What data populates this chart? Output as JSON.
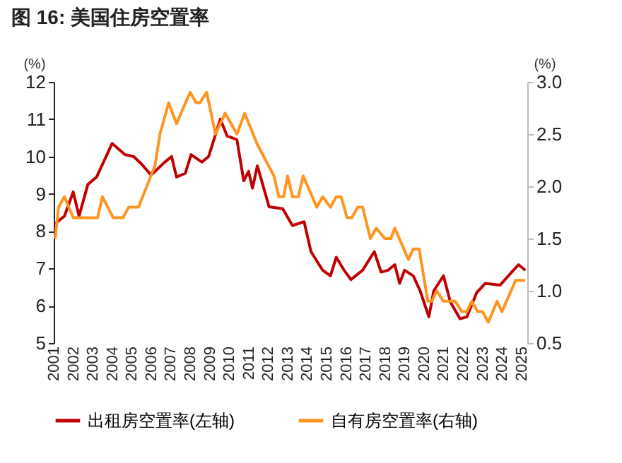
{
  "chart_data": {
    "type": "line",
    "title": "图 16: 美国住房空置率",
    "ylabel": "(%)",
    "y2label": "(%)",
    "xlim": [
      2001,
      2025.3
    ],
    "xticks": [
      2001,
      2002,
      2003,
      2004,
      2005,
      2006,
      2007,
      2008,
      2009,
      2010,
      2011,
      2012,
      2013,
      2014,
      2015,
      2016,
      2017,
      2018,
      2019,
      2020,
      2021,
      2022,
      2023,
      2024,
      2025
    ],
    "ylim": [
      5,
      12
    ],
    "yticks": [
      5,
      6,
      7,
      8,
      9,
      10,
      11,
      12
    ],
    "y2lim": [
      0.5,
      3
    ],
    "y2ticks": [
      {
        "value": 0.5,
        "label": "0.5"
      },
      {
        "value": 1,
        "label": "1.0"
      },
      {
        "value": 1.5,
        "label": "1.5"
      },
      {
        "value": 2,
        "label": "2.0"
      },
      {
        "value": 2.5,
        "label": "2.5"
      },
      {
        "value": 3,
        "label": "3.0"
      }
    ],
    "grid": false,
    "legend": "bottom",
    "line_style": "solid",
    "marker": "none",
    "series": [
      {
        "name": "出租房空置率(左轴)",
        "color": "#c00000",
        "x": [
          2001.07,
          2001.55,
          2002.0,
          2002.3,
          2002.75,
          2003.2,
          2004.0,
          2004.65,
          2005.1,
          2005.5,
          2006.0,
          2006.7,
          2007.05,
          2007.3,
          2007.75,
          2008.05,
          2008.6,
          2008.95,
          2009.55,
          2009.9,
          2010.4,
          2010.75,
          2011.0,
          2011.2,
          2011.45,
          2012.05,
          2012.75,
          2013.25,
          2013.85,
          2014.2,
          2014.8,
          2015.2,
          2015.5,
          2015.9,
          2016.25,
          2016.85,
          2017.45,
          2017.8,
          2018.15,
          2018.5,
          2018.75,
          2019.0,
          2019.45,
          2019.8,
          2020.25,
          2020.5,
          2021.0,
          2021.35,
          2021.85,
          2022.2,
          2022.7,
          2023.15,
          2023.9,
          2024.5,
          2024.85,
          2025.2
        ],
        "values": [
          8.2,
          8.4,
          9.05,
          8.4,
          9.25,
          9.45,
          10.35,
          10.05,
          10.0,
          9.8,
          9.5,
          9.85,
          10.0,
          9.45,
          9.55,
          10.05,
          9.85,
          10.0,
          11.0,
          10.55,
          10.45,
          9.35,
          9.6,
          9.15,
          9.75,
          8.65,
          8.6,
          8.15,
          8.25,
          7.45,
          6.95,
          6.8,
          7.3,
          6.95,
          6.7,
          6.95,
          7.45,
          6.9,
          6.95,
          7.1,
          6.6,
          6.95,
          6.8,
          6.4,
          5.7,
          6.4,
          6.8,
          6.1,
          5.65,
          5.7,
          6.35,
          6.6,
          6.55,
          6.9,
          7.1,
          6.95
        ]
      },
      {
        "name": "自有房空置率(右轴)",
        "color": "#ff9520",
        "axis": "y2",
        "x": [
          2001.07,
          2001.25,
          2001.55,
          2002.0,
          2003.25,
          2003.5,
          2004.05,
          2004.55,
          2004.85,
          2005.35,
          2006.2,
          2006.45,
          2006.9,
          2007.3,
          2008.0,
          2008.3,
          2008.5,
          2008.85,
          2009.3,
          2009.8,
          2010.4,
          2010.8,
          2011.45,
          2012.3,
          2012.55,
          2012.8,
          2013.0,
          2013.25,
          2013.55,
          2013.8,
          2014.5,
          2014.8,
          2015.2,
          2015.5,
          2015.75,
          2016.05,
          2016.3,
          2016.6,
          2016.85,
          2017.25,
          2017.55,
          2018.0,
          2018.3,
          2018.5,
          2019.2,
          2019.45,
          2019.75,
          2020.2,
          2020.4,
          2020.65,
          2021.0,
          2021.6,
          2021.95,
          2022.2,
          2022.45,
          2022.75,
          2023.0,
          2023.3,
          2023.75,
          2024.0,
          2024.7,
          2025.2
        ],
        "values": [
          1.5,
          1.8,
          1.9,
          1.7,
          1.7,
          1.9,
          1.7,
          1.7,
          1.8,
          1.8,
          2.2,
          2.5,
          2.8,
          2.6,
          2.9,
          2.8,
          2.8,
          2.9,
          2.5,
          2.7,
          2.5,
          2.7,
          2.4,
          2.1,
          1.9,
          1.9,
          2.1,
          1.9,
          1.9,
          2.1,
          1.8,
          1.9,
          1.8,
          1.9,
          1.9,
          1.7,
          1.7,
          1.8,
          1.8,
          1.5,
          1.6,
          1.5,
          1.5,
          1.6,
          1.3,
          1.4,
          1.4,
          0.9,
          0.9,
          1.0,
          0.9,
          0.9,
          0.8,
          0.8,
          0.9,
          0.8,
          0.8,
          0.7,
          0.9,
          0.8,
          1.1,
          1.1
        ]
      }
    ]
  }
}
